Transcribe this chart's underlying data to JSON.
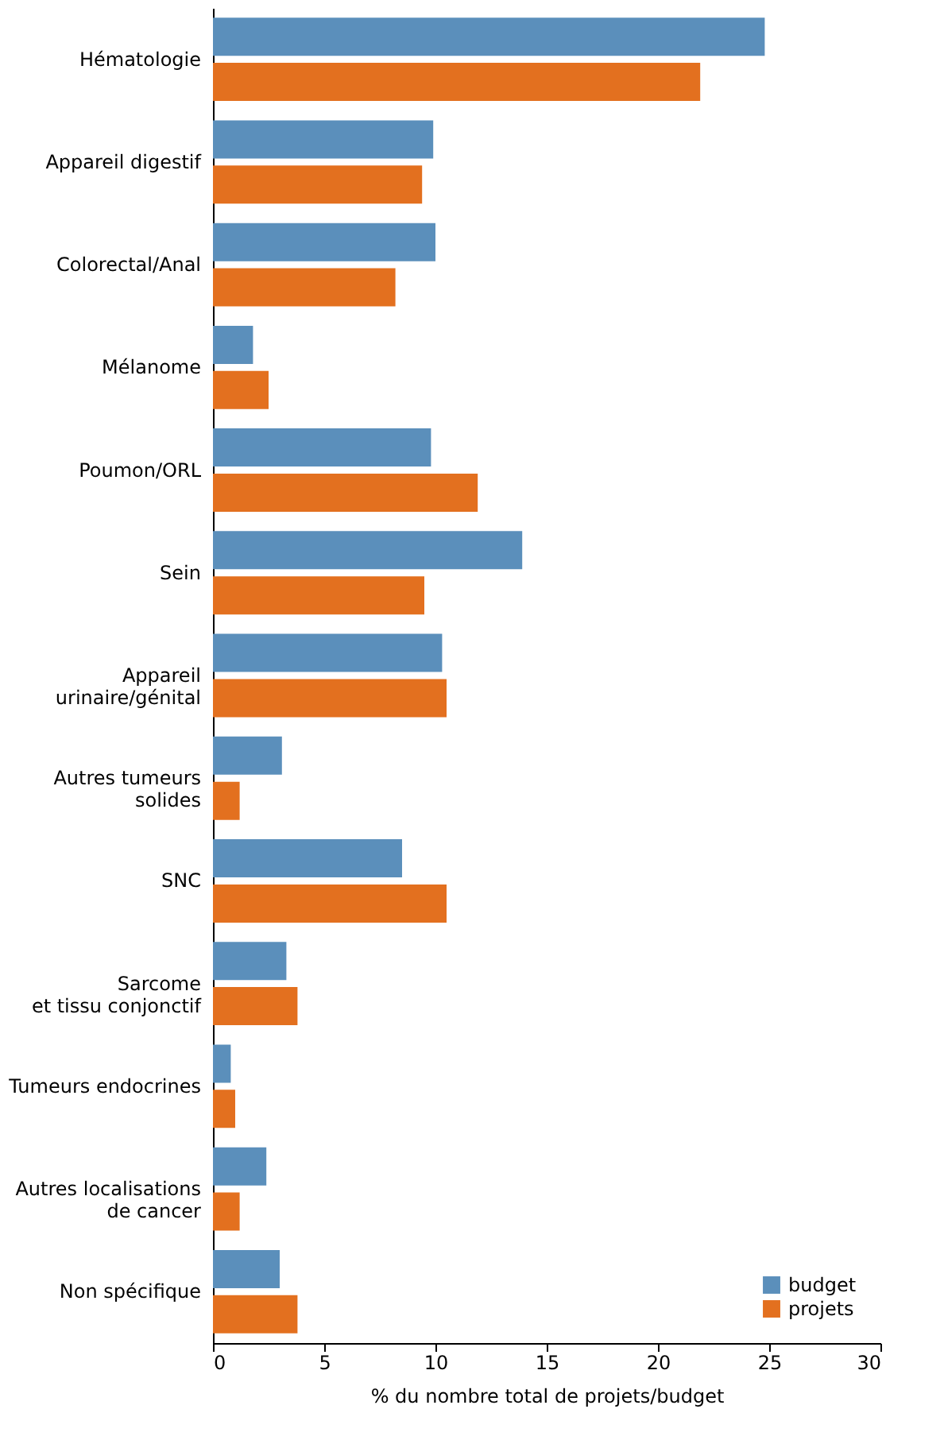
{
  "chart_data": {
    "type": "bar",
    "orientation": "horizontal",
    "xlabel": "% du nombre total de projets/budget",
    "categories": [
      "Hématologie",
      "Appareil digestif",
      "Colorectal/Anal",
      "Mélanome",
      "Poumon/ORL",
      "Sein",
      "Appareil\nurinaire/génital",
      "Autres tumeurs\nsolides",
      "SNC",
      "Sarcome\net tissu conjonctif",
      "Tumeurs endocrines",
      "Autres localisations\nde cancer",
      "Non spécifique"
    ],
    "series": [
      {
        "name": "budget",
        "color": "#5b8fbb",
        "values": [
          24.8,
          9.9,
          10.0,
          1.8,
          9.8,
          13.9,
          10.3,
          3.1,
          8.5,
          3.3,
          0.8,
          2.4,
          3.0
        ]
      },
      {
        "name": "projets",
        "color": "#e3701f",
        "values": [
          21.9,
          9.4,
          8.2,
          2.5,
          11.9,
          9.5,
          10.5,
          1.2,
          10.5,
          3.8,
          1.0,
          1.2,
          3.8
        ]
      }
    ],
    "xlim": [
      0,
      30
    ],
    "xticks": [
      0,
      5,
      10,
      15,
      20,
      25,
      30
    ],
    "grid": false,
    "legend": "bottom right"
  }
}
